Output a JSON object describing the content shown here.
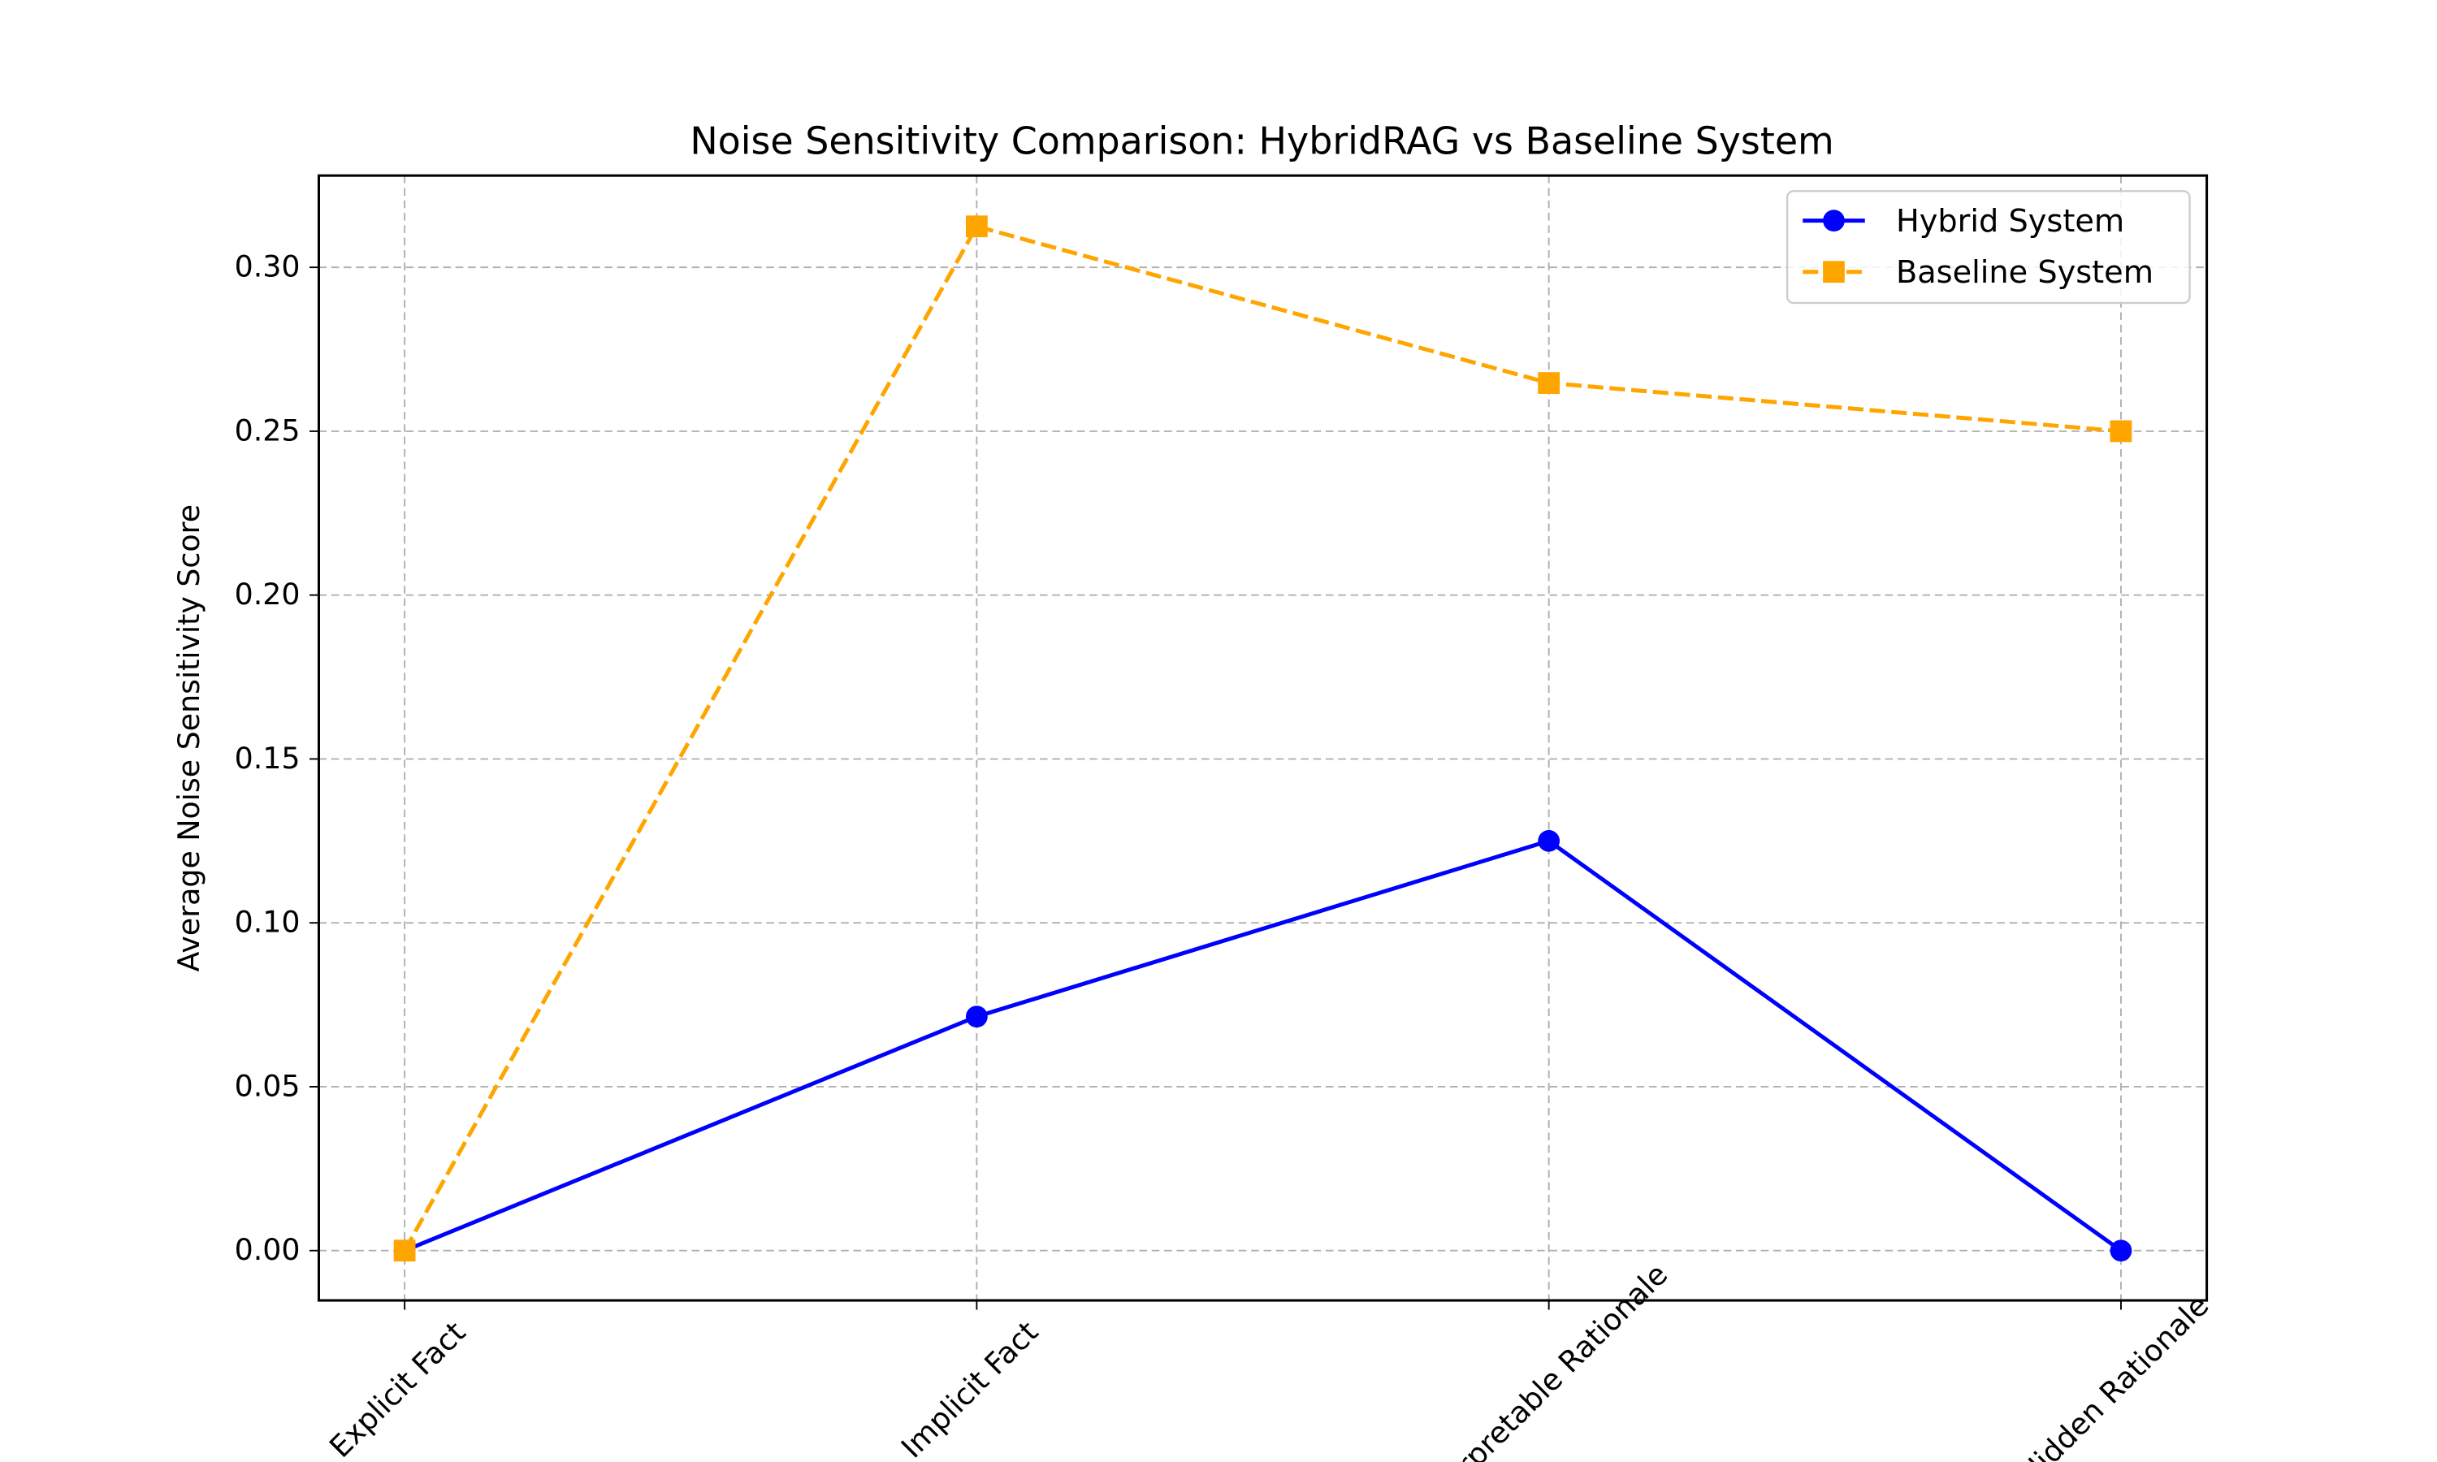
{
  "chart_data": {
    "type": "line",
    "title": "Noise Sensitivity Comparison: HybridRAG vs Baseline System",
    "y_label": "Average Noise Sensitivity Score",
    "categories": [
      "Explicit Fact",
      "Implicit Fact",
      "Interpretable Rationale",
      "Hidden Rationale"
    ],
    "series": [
      {
        "name": "Hybrid System",
        "color": "#0000ff",
        "line_style": "solid",
        "marker": "circle",
        "values": [
          0,
          0.0714,
          0.125,
          0
        ]
      },
      {
        "name": "Baseline System",
        "color": "#ffa500",
        "line_style": "dashed",
        "marker": "square",
        "values": [
          0,
          0.3125,
          0.2647,
          0.25
        ]
      }
    ],
    "ylim": [
      -0.0152,
      0.328
    ],
    "yticks": [
      {
        "value": 0,
        "label": "0.00"
      },
      {
        "value": 0.05,
        "label": "0.05"
      },
      {
        "value": 0.1,
        "label": "0.10"
      },
      {
        "value": 0.15,
        "label": "0.15"
      },
      {
        "value": 0.2,
        "label": "0.20"
      },
      {
        "value": 0.25,
        "label": "0.25"
      },
      {
        "value": 0.3,
        "label": "0.30"
      }
    ],
    "grid": true,
    "legend": "upper right"
  }
}
